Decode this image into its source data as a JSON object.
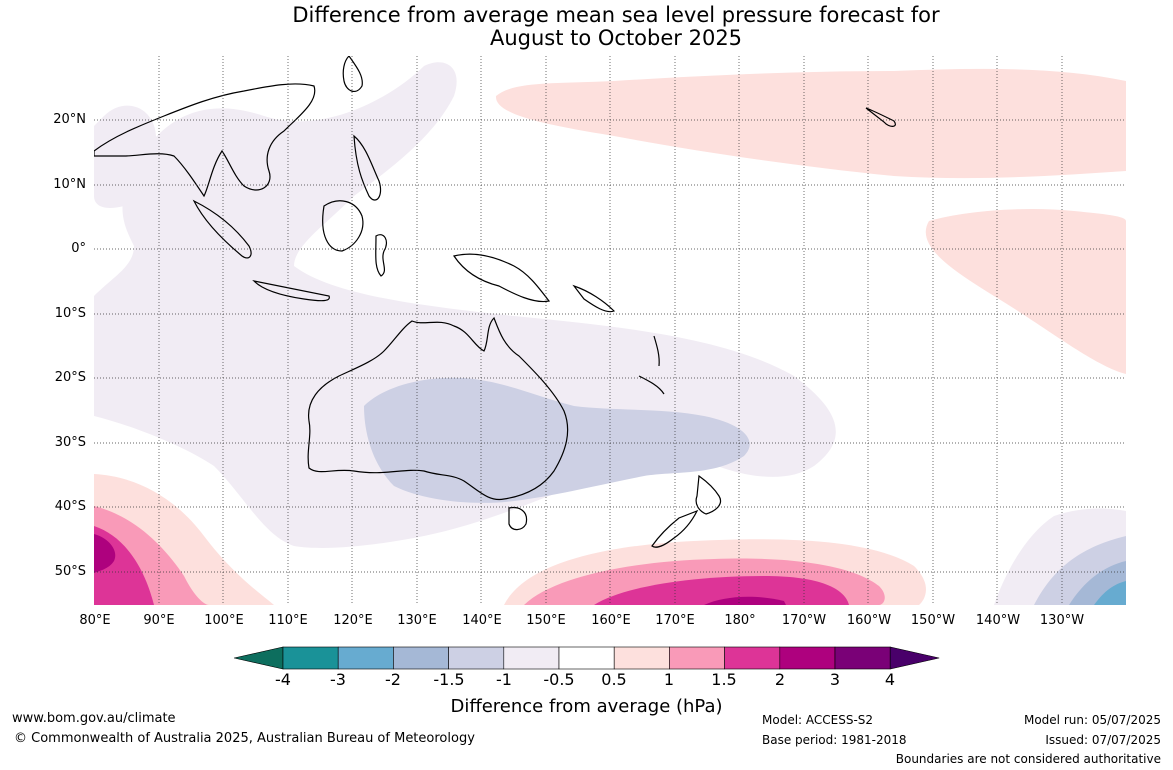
{
  "title": {
    "line1": "Difference from average mean sea level pressure forecast for",
    "line2": "August to October 2025"
  },
  "latitude_labels": [
    "20°N",
    "10°N",
    "0°",
    "10°S",
    "20°S",
    "30°S",
    "40°S",
    "50°S"
  ],
  "longitude_labels": [
    "80°E",
    "90°E",
    "100°E",
    "110°E",
    "120°E",
    "130°E",
    "140°E",
    "150°E",
    "160°E",
    "170°E",
    "180°",
    "170°W",
    "160°W",
    "150°W",
    "140°W",
    "130°W"
  ],
  "colorbar": {
    "ticks": [
      "-4",
      "-3",
      "-2",
      "-1.5",
      "-1",
      "-0.5",
      "0.5",
      "1",
      "1.5",
      "2",
      "3",
      "4"
    ],
    "colors": [
      "#0d6e5e",
      "#1a9298",
      "#67abd0",
      "#a5b8d6",
      "#cdd0e4",
      "#f1ecf4",
      "#ffffff",
      "#fde0dd",
      "#f99ab8",
      "#dd3497",
      "#ae017e",
      "#7a0177",
      "#49006a"
    ],
    "label": "Difference from average (hPa)"
  },
  "map_regions": {
    "land_outline": "#000000",
    "ocean": "#ffffff"
  },
  "footer": {
    "url": "www.bom.gov.au/climate",
    "copyright": "© Commonwealth of Australia 2025, Australian Bureau of Meteorology",
    "model": "Model: ACCESS-S2",
    "base_period": "Base period: 1981-2018",
    "model_run": "Model run: 05/07/2025",
    "issued": "Issued: 07/07/2025",
    "disclaimer": "Boundaries are not considered authoritative"
  }
}
